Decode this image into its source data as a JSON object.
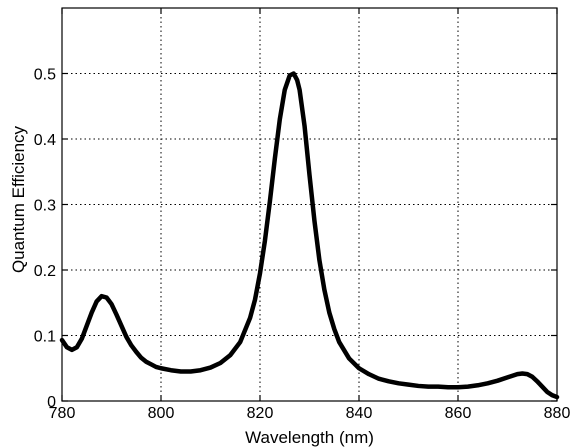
{
  "chart_data": {
    "type": "line",
    "title": "",
    "xlabel": "Wavelength  (nm)",
    "ylabel": "Quantum Efficiency",
    "xlim": [
      780,
      880
    ],
    "ylim": [
      0,
      0.6
    ],
    "grid": true,
    "xticks": [
      780,
      800,
      820,
      840,
      860,
      880
    ],
    "xtick_labels": [
      "780",
      "800",
      "820",
      "840",
      "860",
      "880"
    ],
    "yticks": [
      0,
      0.1,
      0.2,
      0.3,
      0.4,
      0.5
    ],
    "ytick_labels": [
      "0",
      "0.1",
      "0.2",
      "0.3",
      "0.4",
      "0.5"
    ],
    "series": [
      {
        "color": "#000000",
        "x": [
          780,
          781,
          782,
          783,
          784,
          785,
          786,
          787,
          788,
          789,
          790,
          791,
          792,
          793,
          794,
          795,
          796,
          797,
          798,
          799,
          800,
          802,
          804,
          806,
          808,
          810,
          812,
          814,
          816,
          818,
          819,
          820,
          821,
          822,
          823,
          824,
          825,
          826,
          826.8,
          827.5,
          828,
          829,
          830,
          831,
          832,
          833,
          834,
          835,
          836,
          838,
          840,
          842,
          844,
          846,
          848,
          850,
          852,
          854,
          856,
          858,
          860,
          862,
          864,
          866,
          868,
          870,
          872,
          873,
          874,
          875,
          876,
          877,
          878,
          879,
          880
        ],
        "y": [
          0.093,
          0.082,
          0.078,
          0.082,
          0.095,
          0.115,
          0.135,
          0.152,
          0.16,
          0.158,
          0.148,
          0.132,
          0.115,
          0.098,
          0.085,
          0.075,
          0.066,
          0.06,
          0.056,
          0.052,
          0.05,
          0.047,
          0.045,
          0.045,
          0.047,
          0.051,
          0.058,
          0.07,
          0.09,
          0.127,
          0.155,
          0.195,
          0.245,
          0.305,
          0.37,
          0.43,
          0.475,
          0.497,
          0.5,
          0.49,
          0.475,
          0.42,
          0.345,
          0.275,
          0.215,
          0.17,
          0.135,
          0.11,
          0.09,
          0.065,
          0.05,
          0.041,
          0.034,
          0.03,
          0.027,
          0.025,
          0.023,
          0.022,
          0.022,
          0.021,
          0.021,
          0.022,
          0.024,
          0.027,
          0.031,
          0.036,
          0.041,
          0.042,
          0.041,
          0.037,
          0.03,
          0.022,
          0.014,
          0.009,
          0.006
        ]
      }
    ]
  }
}
